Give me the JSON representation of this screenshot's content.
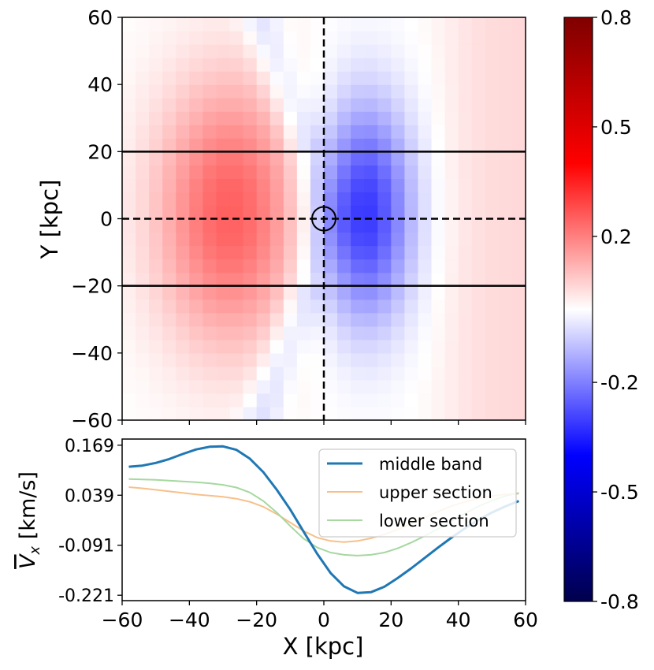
{
  "chart_data": [
    {
      "type": "heatmap",
      "title": "",
      "xlim": [
        -60,
        60
      ],
      "ylim": [
        -60,
        60
      ],
      "xticks": [
        "",
        "",
        "",
        "",
        "",
        "",
        ""
      ],
      "yticks": [
        "60",
        "40",
        "20",
        "0",
        "−20",
        "−40",
        "−60"
      ],
      "ylabel": "Y [kpc]",
      "grid": false,
      "description_of_field": "dipole pattern: positive lobe centred near (-28, 2), negative lobe centred near (12, 2)",
      "field_model": {
        "positive_peak": {
          "x": -28,
          "y": 2,
          "value": 0.25
        },
        "negative_peak": {
          "x": 12,
          "y": 2,
          "value": -0.32
        },
        "outer_right_value": 0.06
      },
      "overlays": {
        "solid_hlines_y": [
          20,
          -20
        ],
        "dashed_hline_y": 0,
        "dashed_vline_x": 0,
        "circle_center": [
          0,
          0
        ]
      },
      "colorbar": {
        "range": [
          -0.8,
          0.8
        ],
        "colormap": "seismic",
        "tick_labels": [
          "0.8",
          "0.5",
          "0.2",
          "-0.2",
          "-0.5",
          "-0.8"
        ],
        "tick_values": [
          0.8,
          0.5,
          0.2,
          -0.2,
          -0.5,
          -0.8
        ]
      }
    },
    {
      "type": "line",
      "xlabel": "X [kpc]",
      "ylabel_main": "V",
      "ylabel_sub": "x",
      "ylabel_unit": " [km/s]",
      "xlim": [
        -60,
        60
      ],
      "ylim": [
        -0.235,
        0.185
      ],
      "xticks": [
        "−60",
        "−40",
        "−20",
        "0",
        "20",
        "40",
        "60"
      ],
      "xtick_values": [
        -60,
        -40,
        -20,
        0,
        20,
        40,
        60
      ],
      "yticks": [
        "0.169",
        "0.039",
        "-0.091",
        "-0.221"
      ],
      "ytick_values": [
        0.169,
        0.039,
        -0.091,
        -0.221
      ],
      "grid": false,
      "legend": "top-right",
      "x": [
        -58,
        -54,
        -50,
        -46,
        -42,
        -38,
        -34,
        -30,
        -26,
        -22,
        -18,
        -14,
        -10,
        -6,
        -2,
        2,
        6,
        10,
        14,
        18,
        22,
        26,
        30,
        34,
        38,
        42,
        46,
        50,
        54,
        58
      ],
      "series": [
        {
          "name": "middle band",
          "color": "#1f77b4",
          "width": 3,
          "values": [
            0.113,
            0.116,
            0.123,
            0.133,
            0.146,
            0.158,
            0.165,
            0.166,
            0.157,
            0.134,
            0.099,
            0.053,
            0.002,
            -0.056,
            -0.113,
            -0.163,
            -0.198,
            -0.215,
            -0.213,
            -0.199,
            -0.176,
            -0.151,
            -0.124,
            -0.097,
            -0.071,
            -0.047,
            -0.025,
            -0.006,
            0.01,
            0.024
          ]
        },
        {
          "name": "upper section",
          "color": "#f7c08b",
          "width": 2,
          "values": [
            0.06,
            0.057,
            0.053,
            0.049,
            0.045,
            0.041,
            0.038,
            0.035,
            0.03,
            0.022,
            0.009,
            -0.01,
            -0.032,
            -0.054,
            -0.071,
            -0.08,
            -0.083,
            -0.08,
            -0.073,
            -0.063,
            -0.05,
            -0.035,
            -0.019,
            -0.003,
            0.011,
            0.022,
            0.031,
            0.037,
            0.041,
            0.043
          ]
        },
        {
          "name": "lower section",
          "color": "#a6d8a0",
          "width": 2,
          "values": [
            0.081,
            0.08,
            0.079,
            0.077,
            0.075,
            0.073,
            0.07,
            0.066,
            0.059,
            0.046,
            0.024,
            -0.006,
            -0.041,
            -0.074,
            -0.097,
            -0.11,
            -0.116,
            -0.118,
            -0.116,
            -0.11,
            -0.099,
            -0.084,
            -0.067,
            -0.048,
            -0.028,
            -0.008,
            0.01,
            0.025,
            0.037,
            0.045
          ]
        }
      ]
    }
  ]
}
